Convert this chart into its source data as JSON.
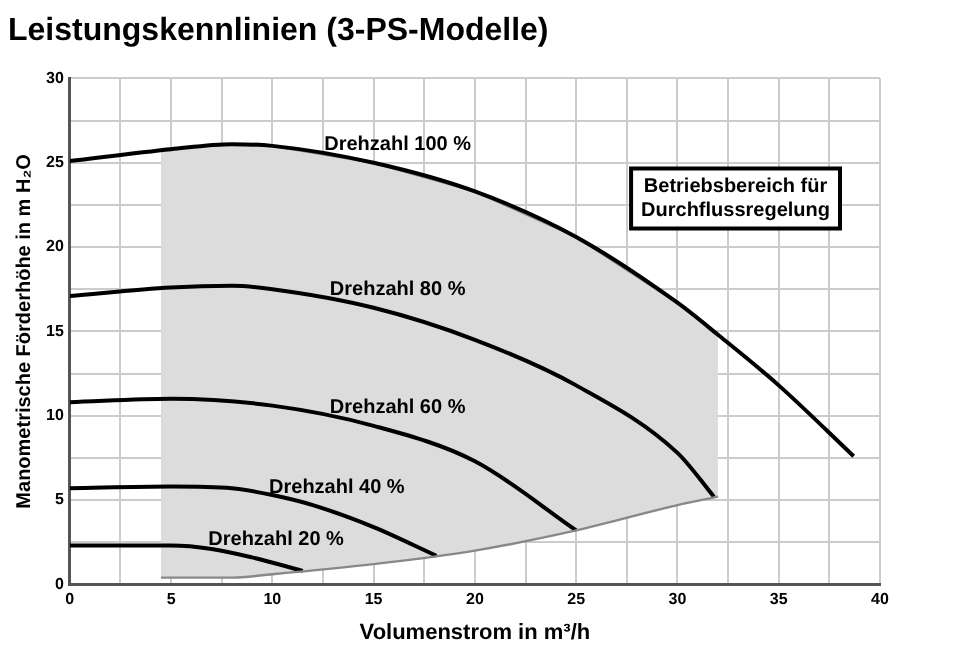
{
  "chart_data": {
    "type": "line",
    "title": "Leistungskennlinien (3-PS-Modelle)",
    "xlabel": "Volumenstrom in m³/h",
    "ylabel": "Manometrische Förderhöhe in m H₂O",
    "xlim": [
      0,
      40
    ],
    "xticks": [
      0,
      {
        "value": 2.5,
        "label": null
      },
      5,
      {
        "value": 7.5,
        "label": null
      },
      10,
      {
        "value": 12.5,
        "label": null
      },
      15,
      {
        "value": 17.5,
        "label": null
      },
      20,
      {
        "value": 22.5,
        "label": null
      },
      25,
      {
        "value": 27.5,
        "label": null
      },
      30,
      {
        "value": 32.5,
        "label": null
      },
      35,
      {
        "value": 37.5,
        "label": null
      },
      40
    ],
    "ylim": [
      0,
      30
    ],
    "yticks": [
      0,
      {
        "value": 2.5,
        "label": null
      },
      5,
      {
        "value": 7.5,
        "label": null
      },
      10,
      {
        "value": 12.5,
        "label": null
      },
      15,
      {
        "value": 17.5,
        "label": null
      },
      20,
      {
        "value": 22.5,
        "label": null
      },
      25,
      {
        "value": 27.5,
        "label": null
      },
      30
    ],
    "grid": true,
    "legend": false,
    "marker": "none",
    "line_style": "solid",
    "annotations": [
      "Betriebsbereich für\nDurchflussregelung"
    ],
    "series": [
      {
        "color": "#888888",
        "x": [
          4.5,
          8,
          10,
          15,
          20,
          25,
          30,
          32
        ],
        "values": [
          0.4,
          0.4,
          0.6,
          1.2,
          2.0,
          3.2,
          4.7,
          5.2
        ]
      },
      {
        "type": "area",
        "color": "#dcdcdc",
        "x": [
          4.5,
          8,
          10,
          15,
          20,
          25,
          30,
          32
        ],
        "values": [
          25.8,
          26.1,
          26.0,
          25.0,
          23.3,
          20.6,
          16.7,
          14.8
        ]
      },
      {
        "name": "Drehzahl 100 %",
        "color": "#000000",
        "x": [
          0,
          5,
          8,
          10,
          15,
          20,
          25,
          30,
          32,
          35,
          38.7
        ],
        "values": [
          25.1,
          25.8,
          26.1,
          26.0,
          25.0,
          23.3,
          20.6,
          16.7,
          14.8,
          11.8,
          7.6
        ]
      },
      {
        "name": "Drehzahl 80 %",
        "color": "#000000",
        "x": [
          0,
          5,
          8,
          10,
          15,
          20,
          25,
          30,
          31.8
        ],
        "values": [
          17.1,
          17.6,
          17.7,
          17.5,
          16.4,
          14.5,
          11.8,
          7.8,
          5.2
        ]
      },
      {
        "name": "Drehzahl 60 %",
        "color": "#000000",
        "x": [
          0,
          5,
          10,
          15,
          20,
          25
        ],
        "values": [
          10.8,
          11.0,
          10.6,
          9.4,
          7.3,
          3.2
        ]
      },
      {
        "name": "Drehzahl 40 %",
        "color": "#000000",
        "x": [
          0,
          5,
          8,
          10,
          12,
          15,
          18.1
        ],
        "values": [
          5.7,
          5.8,
          5.7,
          5.3,
          4.7,
          3.4,
          1.7
        ]
      },
      {
        "name": "Drehzahl 20 %",
        "color": "#000000",
        "x": [
          0,
          5,
          7,
          9,
          11.5
        ],
        "values": [
          2.3,
          2.3,
          2.1,
          1.6,
          0.8
        ]
      }
    ]
  }
}
